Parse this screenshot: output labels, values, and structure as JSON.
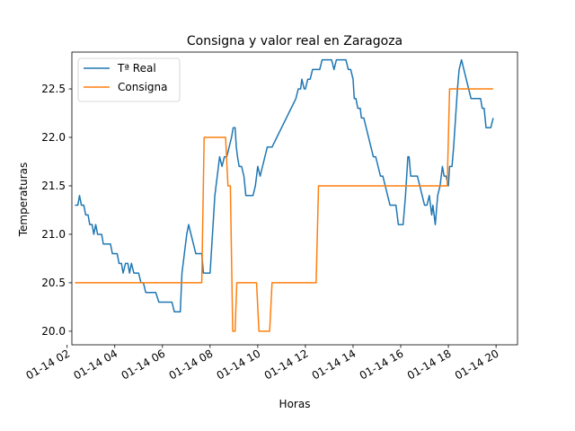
{
  "chart_data": {
    "type": "line",
    "title": "Consigna y valor real en Zaragoza",
    "xlabel": "Horas",
    "ylabel": "Temperaturas",
    "xlim": [
      2.2,
      20.9
    ],
    "ylim": [
      19.86,
      22.88
    ],
    "grid": false,
    "legend_position": "top-left",
    "x_ticks": [
      {
        "value": 2,
        "label": "01-14 02"
      },
      {
        "value": 4,
        "label": "01-14 04"
      },
      {
        "value": 6,
        "label": "01-14 06"
      },
      {
        "value": 8,
        "label": "01-14 08"
      },
      {
        "value": 10,
        "label": "01-14 10"
      },
      {
        "value": 12,
        "label": "01-14 12"
      },
      {
        "value": 14,
        "label": "01-14 14"
      },
      {
        "value": 16,
        "label": "01-14 16"
      },
      {
        "value": 18,
        "label": "01-14 18"
      },
      {
        "value": 20,
        "label": "01-14 20"
      }
    ],
    "y_ticks": [
      {
        "value": 20.0,
        "label": "20.0"
      },
      {
        "value": 20.5,
        "label": "20.5"
      },
      {
        "value": 21.0,
        "label": "21.0"
      },
      {
        "value": 21.5,
        "label": "21.5"
      },
      {
        "value": 22.0,
        "label": "22.0"
      },
      {
        "value": 22.5,
        "label": "22.5"
      }
    ],
    "series": [
      {
        "name": "Tª Real",
        "color": "#1f77b4",
        "points": [
          [
            2.33,
            21.3
          ],
          [
            2.45,
            21.3
          ],
          [
            2.52,
            21.4
          ],
          [
            2.6,
            21.3
          ],
          [
            2.7,
            21.3
          ],
          [
            2.78,
            21.2
          ],
          [
            2.88,
            21.2
          ],
          [
            2.95,
            21.1
          ],
          [
            3.05,
            21.1
          ],
          [
            3.12,
            21.0
          ],
          [
            3.2,
            21.1
          ],
          [
            3.28,
            21.0
          ],
          [
            3.35,
            21.0
          ],
          [
            3.45,
            21.0
          ],
          [
            3.52,
            20.9
          ],
          [
            3.62,
            20.9
          ],
          [
            3.72,
            20.9
          ],
          [
            3.82,
            20.9
          ],
          [
            3.9,
            20.8
          ],
          [
            4.0,
            20.8
          ],
          [
            4.1,
            20.8
          ],
          [
            4.18,
            20.7
          ],
          [
            4.28,
            20.7
          ],
          [
            4.35,
            20.6
          ],
          [
            4.45,
            20.7
          ],
          [
            4.55,
            20.7
          ],
          [
            4.62,
            20.6
          ],
          [
            4.7,
            20.7
          ],
          [
            4.8,
            20.6
          ],
          [
            4.9,
            20.6
          ],
          [
            5.0,
            20.6
          ],
          [
            5.1,
            20.5
          ],
          [
            5.2,
            20.5
          ],
          [
            5.3,
            20.4
          ],
          [
            5.4,
            20.4
          ],
          [
            5.55,
            20.4
          ],
          [
            5.72,
            20.4
          ],
          [
            5.85,
            20.3
          ],
          [
            6.0,
            20.3
          ],
          [
            6.2,
            20.3
          ],
          [
            6.4,
            20.3
          ],
          [
            6.5,
            20.2
          ],
          [
            6.6,
            20.2
          ],
          [
            6.75,
            20.2
          ],
          [
            6.82,
            20.6
          ],
          [
            6.92,
            20.8
          ],
          [
            7.02,
            21.0
          ],
          [
            7.1,
            21.1
          ],
          [
            7.2,
            21.0
          ],
          [
            7.3,
            20.9
          ],
          [
            7.4,
            20.8
          ],
          [
            7.55,
            20.8
          ],
          [
            7.65,
            20.8
          ],
          [
            7.72,
            20.6
          ],
          [
            7.82,
            20.6
          ],
          [
            8.0,
            20.6
          ],
          [
            8.1,
            21.0
          ],
          [
            8.2,
            21.4
          ],
          [
            8.3,
            21.6
          ],
          [
            8.4,
            21.8
          ],
          [
            8.5,
            21.7
          ],
          [
            8.6,
            21.8
          ],
          [
            8.7,
            21.8
          ],
          [
            8.8,
            21.9
          ],
          [
            8.9,
            22.0
          ],
          [
            8.97,
            22.1
          ],
          [
            9.05,
            22.1
          ],
          [
            9.1,
            21.9
          ],
          [
            9.15,
            21.8
          ],
          [
            9.22,
            21.7
          ],
          [
            9.32,
            21.7
          ],
          [
            9.42,
            21.6
          ],
          [
            9.5,
            21.4
          ],
          [
            9.6,
            21.4
          ],
          [
            9.7,
            21.4
          ],
          [
            9.8,
            21.4
          ],
          [
            9.9,
            21.5
          ],
          [
            10.0,
            21.7
          ],
          [
            10.1,
            21.6
          ],
          [
            10.2,
            21.7
          ],
          [
            10.3,
            21.8
          ],
          [
            10.4,
            21.9
          ],
          [
            10.5,
            21.9
          ],
          [
            10.6,
            21.9
          ],
          [
            10.8,
            22.0
          ],
          [
            11.0,
            22.1
          ],
          [
            11.2,
            22.2
          ],
          [
            11.4,
            22.3
          ],
          [
            11.6,
            22.4
          ],
          [
            11.7,
            22.5
          ],
          [
            11.8,
            22.5
          ],
          [
            11.85,
            22.6
          ],
          [
            11.95,
            22.5
          ],
          [
            12.0,
            22.5
          ],
          [
            12.1,
            22.6
          ],
          [
            12.2,
            22.6
          ],
          [
            12.3,
            22.7
          ],
          [
            12.4,
            22.7
          ],
          [
            12.6,
            22.7
          ],
          [
            12.7,
            22.8
          ],
          [
            12.8,
            22.8
          ],
          [
            12.9,
            22.8
          ],
          [
            13.0,
            22.8
          ],
          [
            13.1,
            22.8
          ],
          [
            13.2,
            22.7
          ],
          [
            13.3,
            22.8
          ],
          [
            13.4,
            22.8
          ],
          [
            13.5,
            22.8
          ],
          [
            13.6,
            22.8
          ],
          [
            13.7,
            22.8
          ],
          [
            13.8,
            22.7
          ],
          [
            13.9,
            22.7
          ],
          [
            14.0,
            22.6
          ],
          [
            14.05,
            22.4
          ],
          [
            14.12,
            22.4
          ],
          [
            14.2,
            22.3
          ],
          [
            14.3,
            22.3
          ],
          [
            14.35,
            22.2
          ],
          [
            14.45,
            22.2
          ],
          [
            14.55,
            22.1
          ],
          [
            14.65,
            22.0
          ],
          [
            14.75,
            21.9
          ],
          [
            14.85,
            21.8
          ],
          [
            14.95,
            21.8
          ],
          [
            15.05,
            21.7
          ],
          [
            15.15,
            21.6
          ],
          [
            15.25,
            21.6
          ],
          [
            15.35,
            21.5
          ],
          [
            15.45,
            21.4
          ],
          [
            15.55,
            21.3
          ],
          [
            15.65,
            21.3
          ],
          [
            15.8,
            21.3
          ],
          [
            15.9,
            21.1
          ],
          [
            16.0,
            21.1
          ],
          [
            16.1,
            21.1
          ],
          [
            16.2,
            21.4
          ],
          [
            16.3,
            21.8
          ],
          [
            16.35,
            21.8
          ],
          [
            16.42,
            21.6
          ],
          [
            16.5,
            21.6
          ],
          [
            16.6,
            21.6
          ],
          [
            16.7,
            21.6
          ],
          [
            16.8,
            21.5
          ],
          [
            16.9,
            21.4
          ],
          [
            17.0,
            21.3
          ],
          [
            17.1,
            21.3
          ],
          [
            17.2,
            21.4
          ],
          [
            17.3,
            21.2
          ],
          [
            17.35,
            21.3
          ],
          [
            17.45,
            21.1
          ],
          [
            17.55,
            21.4
          ],
          [
            17.65,
            21.5
          ],
          [
            17.75,
            21.7
          ],
          [
            17.82,
            21.6
          ],
          [
            17.9,
            21.6
          ],
          [
            18.0,
            21.5
          ],
          [
            18.05,
            21.7
          ],
          [
            18.15,
            21.7
          ],
          [
            18.22,
            21.9
          ],
          [
            18.3,
            22.2
          ],
          [
            18.38,
            22.5
          ],
          [
            18.45,
            22.7
          ],
          [
            18.55,
            22.8
          ],
          [
            18.65,
            22.7
          ],
          [
            18.75,
            22.6
          ],
          [
            18.85,
            22.5
          ],
          [
            18.95,
            22.4
          ],
          [
            19.1,
            22.4
          ],
          [
            19.25,
            22.4
          ],
          [
            19.35,
            22.4
          ],
          [
            19.42,
            22.3
          ],
          [
            19.5,
            22.3
          ],
          [
            19.58,
            22.1
          ],
          [
            19.68,
            22.1
          ],
          [
            19.78,
            22.1
          ],
          [
            19.88,
            22.2
          ]
        ]
      },
      {
        "name": "Consigna",
        "color": "#ff7f0e",
        "points": [
          [
            2.33,
            20.5
          ],
          [
            7.65,
            20.5
          ],
          [
            7.75,
            22.0
          ],
          [
            8.65,
            22.0
          ],
          [
            8.75,
            21.5
          ],
          [
            8.85,
            21.5
          ],
          [
            8.95,
            20.0
          ],
          [
            9.05,
            20.0
          ],
          [
            9.12,
            20.5
          ],
          [
            9.95,
            20.5
          ],
          [
            10.05,
            20.0
          ],
          [
            10.5,
            20.0
          ],
          [
            10.6,
            20.5
          ],
          [
            12.45,
            20.5
          ],
          [
            12.55,
            21.5
          ],
          [
            17.95,
            21.5
          ],
          [
            18.05,
            22.5
          ],
          [
            19.88,
            22.5
          ]
        ]
      }
    ]
  }
}
